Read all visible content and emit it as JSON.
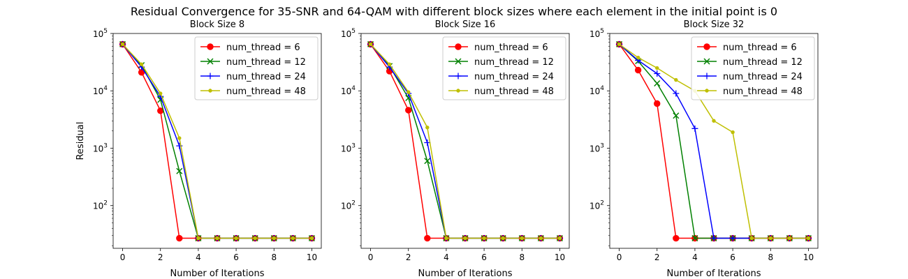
{
  "colors": {
    "red": "#ff0000",
    "green": "#008000",
    "blue": "#0000ff",
    "olive": "#bfbf00"
  },
  "chart_data": {
    "type": "line",
    "title": "Residual Convergence for 35-SNR and 64-QAM with different block sizes where each element in the initial point is 0",
    "ylabel": "Residual",
    "xlabel": "Number of Iterations",
    "yscale": "log",
    "ylim": [
      18,
      100000
    ],
    "xlim": [
      -0.5,
      10.5
    ],
    "xticks": [
      0,
      2,
      4,
      6,
      8,
      10
    ],
    "yticks": [
      100,
      1000,
      10000,
      100000
    ],
    "ytick_labels": [
      [
        "10",
        "2"
      ],
      [
        "10",
        "3"
      ],
      [
        "10",
        "4"
      ],
      [
        "10",
        "5"
      ]
    ],
    "legend_position": "top-right",
    "x": [
      0,
      1,
      2,
      3,
      4,
      5,
      6,
      7,
      8,
      9,
      10
    ],
    "subplots": [
      {
        "title": "Block Size 8",
        "series": [
          {
            "name": "num_thread = 6",
            "marker": "circle",
            "color": "#ff0000",
            "values": [
              65000,
              21000,
              4500,
              27,
              27,
              27,
              27,
              27,
              27,
              27,
              27
            ]
          },
          {
            "name": "num_thread = 12",
            "marker": "x",
            "color": "#008000",
            "values": [
              65000,
              28000,
              7000,
              400,
              27,
              27,
              27,
              27,
              27,
              27,
              27
            ]
          },
          {
            "name": "num_thread = 24",
            "marker": "plus",
            "color": "#0000ff",
            "values": [
              65000,
              26000,
              8000,
              1100,
              27,
              27,
              27,
              27,
              27,
              27,
              27
            ]
          },
          {
            "name": "num_thread = 48",
            "marker": "point",
            "color": "#bfbf00",
            "values": [
              65000,
              29000,
              9000,
              1500,
              27,
              27,
              27,
              27,
              27,
              27,
              27
            ]
          }
        ]
      },
      {
        "title": "Block Size 16",
        "series": [
          {
            "name": "num_thread = 6",
            "marker": "circle",
            "color": "#ff0000",
            "values": [
              65000,
              22000,
              4600,
              27,
              27,
              27,
              27,
              27,
              27,
              27,
              27
            ]
          },
          {
            "name": "num_thread = 12",
            "marker": "x",
            "color": "#008000",
            "values": [
              65000,
              27000,
              7500,
              600,
              27,
              27,
              27,
              27,
              27,
              27,
              27
            ]
          },
          {
            "name": "num_thread = 24",
            "marker": "plus",
            "color": "#0000ff",
            "values": [
              65000,
              26000,
              9000,
              1250,
              27,
              27,
              27,
              27,
              27,
              27,
              27
            ]
          },
          {
            "name": "num_thread = 48",
            "marker": "point",
            "color": "#bfbf00",
            "values": [
              65000,
              29000,
              9500,
              2300,
              27,
              27,
              27,
              27,
              27,
              27,
              27
            ]
          }
        ]
      },
      {
        "title": "Block Size 32",
        "series": [
          {
            "name": "num_thread = 6",
            "marker": "circle",
            "color": "#ff0000",
            "values": [
              65000,
              23000,
              6000,
              27,
              27,
              27,
              27,
              27,
              27,
              27,
              27
            ]
          },
          {
            "name": "num_thread = 12",
            "marker": "x",
            "color": "#008000",
            "values": [
              65000,
              33000,
              13500,
              3700,
              27,
              27,
              27,
              27,
              27,
              27,
              27
            ]
          },
          {
            "name": "num_thread = 24",
            "marker": "plus",
            "color": "#0000ff",
            "values": [
              65000,
              34000,
              20000,
              9000,
              2200,
              27,
              27,
              27,
              27,
              27,
              27
            ]
          },
          {
            "name": "num_thread = 48",
            "marker": "point",
            "color": "#bfbf00",
            "values": [
              65000,
              38000,
              25000,
              15500,
              10000,
              3000,
              1900,
              27,
              27,
              27,
              27
            ]
          }
        ]
      }
    ]
  }
}
